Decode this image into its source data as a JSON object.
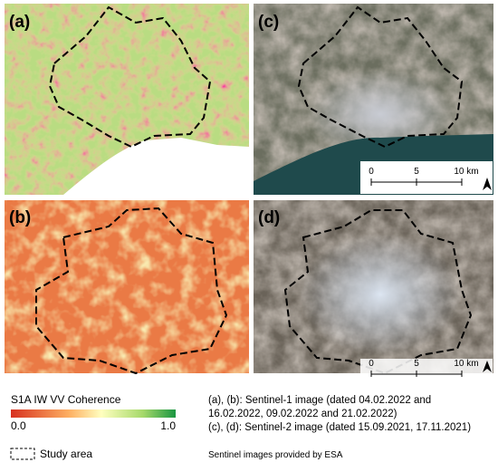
{
  "panels": [
    {
      "label": "(a)"
    },
    {
      "label": "(b)"
    },
    {
      "label": "(c)",
      "scale_bar": [
        "0",
        "5",
        "10 km"
      ]
    },
    {
      "label": "(d)",
      "scale_bar": [
        "0",
        "5",
        "10 km"
      ]
    }
  ],
  "legend": {
    "colorbar_title": "S1A IW VV Coherence",
    "colorbar_min": "0.0",
    "colorbar_max": "1.0",
    "study_area": "Study area"
  },
  "caption": {
    "lines": [
      "(a), (b): Sentinel-1 image (dated 04.02.2022 and",
      "16.02.2022, 09.02.2022 and 21.02.2022)",
      "(c), (d): Sentinel-2 image (dated 15.09.2021, 17.11.2021)"
    ],
    "credit": "Sentinel images provided by ESA"
  }
}
